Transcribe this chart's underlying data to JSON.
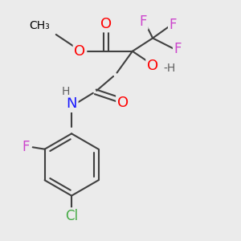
{
  "bg": "#ebebeb",
  "colors": {
    "O": "#ff0000",
    "F": "#cc44cc",
    "N": "#1a1aff",
    "Cl": "#44aa44",
    "bond": "#404040",
    "H": "#606060"
  },
  "font_sizes": {
    "heteroatom": 13,
    "small": 10,
    "methyl": 10
  }
}
